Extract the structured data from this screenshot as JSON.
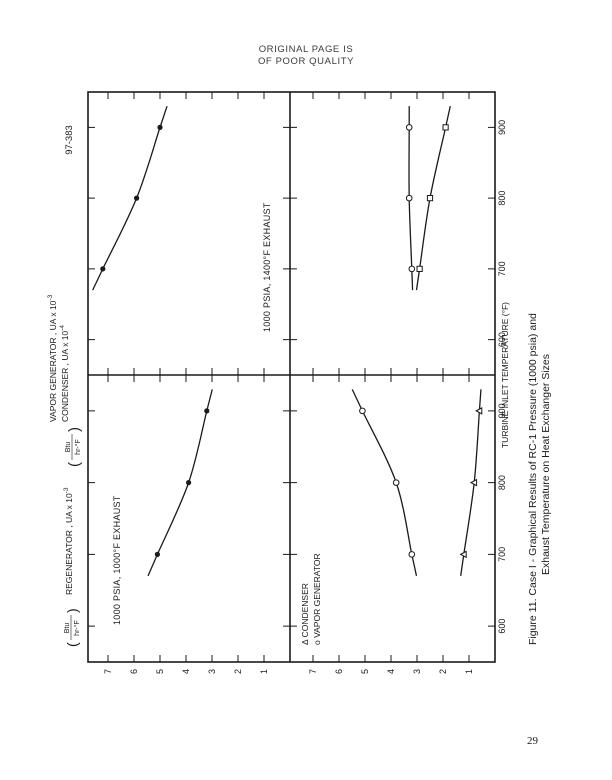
{
  "header": {
    "line1": "ORIGINAL PAGE IS",
    "line2": "OF POOR QUALITY"
  },
  "doc_code": "97-383",
  "page_number": "29",
  "caption": {
    "line1": "Figure 11.   Case I - Graphical Results of RC-1 Pressure (1000 psia) and",
    "line2": "Exhaust Temperature on Heat Exchanger Sizes"
  },
  "xlabel": "TURBINE INLET TEMPERATURE (°F)",
  "x_ticks": [
    "600",
    "700",
    "800",
    "900"
  ],
  "y_ticks": [
    "7",
    "6",
    "5",
    "4",
    "3",
    "2",
    "1"
  ],
  "ylabel_top": {
    "main": "REGENERATOR , UA x 10",
    "exp": "-3",
    "unit_num": "Btu",
    "unit_den": "hr-°F"
  },
  "ylabel_bottom": {
    "line1": "VAPOR GENERATOR , UA x 10",
    "exp1": "-3",
    "line2": "CONDENSER , UA x 10",
    "exp2": "-4",
    "unit_num": "Btu",
    "unit_den": "hr-°F"
  },
  "legend": {
    "condenser": "Δ  CONDENSER",
    "vapor": "o  VAPOR GENERATOR"
  },
  "panels": {
    "left_label": "1000 PSIA, 1000°F EXHAUST",
    "right_label": "1000 PSIA, 1400°F EXHAUST"
  },
  "chart_data": [
    {
      "type": "line",
      "title": "1000 PSIA, 1000°F EXHAUST",
      "xlabel": "TURBINE INLET TEMPERATURE (°F)",
      "ylabel": "REGENERATOR , UA x 10-3 (Btu/hr-°F)",
      "xlim": [
        550,
        950
      ],
      "ylim": [
        0,
        7.5
      ],
      "series": [
        {
          "name": "",
          "marker": "dot",
          "x": [
            700,
            800,
            900
          ],
          "y": [
            5.1,
            3.9,
            3.2
          ]
        }
      ]
    },
    {
      "type": "line",
      "title": "1000 PSIA, 1400°F EXHAUST",
      "xlabel": "TURBINE INLET TEMPERATURE (°F)",
      "ylabel": "REGENERATOR , UA x 10-3 (Btu/hr-°F)",
      "xlim": [
        550,
        950
      ],
      "ylim": [
        0,
        7.5
      ],
      "series": [
        {
          "name": "",
          "marker": "dot",
          "x": [
            700,
            800,
            900
          ],
          "y": [
            7.2,
            5.9,
            5.0
          ]
        }
      ]
    },
    {
      "type": "line",
      "title": "",
      "xlabel": "TURBINE INLET TEMPERATURE (°F)",
      "ylabel": "VAPOR GENERATOR , UA x 10-3 / CONDENSER , UA x 10-4 (Btu/hr-°F)",
      "xlim": [
        550,
        950
      ],
      "ylim": [
        0,
        7.5
      ],
      "series": [
        {
          "name": "VAPOR GENERATOR",
          "marker": "circle",
          "x": [
            700,
            800,
            900
          ],
          "y": [
            3.2,
            3.8,
            5.1
          ]
        },
        {
          "name": "CONDENSER",
          "marker": "triangle",
          "x": [
            700,
            800,
            900
          ],
          "y": [
            1.2,
            0.8,
            0.6
          ]
        }
      ]
    },
    {
      "type": "line",
      "title": "",
      "xlabel": "TURBINE INLET TEMPERATURE (°F)",
      "ylabel": "VAPOR GENERATOR , UA x 10-3 / CONDENSER , UA x 10-4 (Btu/hr-°F)",
      "xlim": [
        550,
        950
      ],
      "ylim": [
        0,
        7.5
      ],
      "series": [
        {
          "name": "VAPOR GENERATOR",
          "marker": "circle",
          "x": [
            700,
            800,
            900
          ],
          "y": [
            3.2,
            3.3,
            3.3
          ]
        },
        {
          "name": "CONDENSER",
          "marker": "square",
          "x": [
            700,
            800,
            900
          ],
          "y": [
            2.9,
            2.5,
            1.9
          ]
        }
      ]
    }
  ]
}
